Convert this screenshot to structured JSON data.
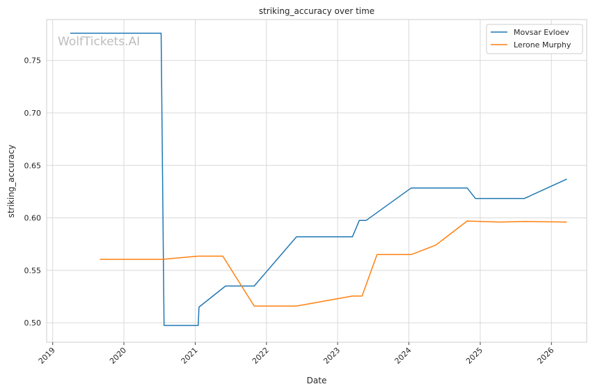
{
  "watermark": "WolfTickets.AI",
  "chart_data": {
    "type": "line",
    "title": "striking_accuracy over time",
    "xlabel": "Date",
    "ylabel": "striking_accuracy",
    "x_ticks": [
      "2019",
      "2020",
      "2021",
      "2022",
      "2023",
      "2024",
      "2025",
      "2026"
    ],
    "y_ticks": [
      "0.50",
      "0.55",
      "0.60",
      "0.65",
      "0.70",
      "0.75"
    ],
    "xlim": [
      "2018-12-01",
      "2026-07-01"
    ],
    "ylim": [
      0.4815,
      0.789
    ],
    "grid": true,
    "legend_position": "top-right",
    "colors": {
      "Movsar Evloev": "#1f77b4",
      "Lerone Murphy": "#ff7f0e"
    },
    "series": [
      {
        "name": "Movsar Evloev",
        "x": [
          "2019-04-01",
          "2020-07-10",
          "2020-07-25",
          "2021-01-16",
          "2021-01-20",
          "2021-06-05",
          "2021-10-30",
          "2022-06-04",
          "2023-03-18",
          "2023-04-22",
          "2023-05-27",
          "2024-01-13",
          "2024-10-26",
          "2024-12-07",
          "2025-08-16",
          "2026-03-21"
        ],
        "y": [
          0.776,
          0.776,
          0.4975,
          0.4975,
          0.515,
          0.535,
          0.535,
          0.582,
          0.582,
          0.5975,
          0.5975,
          0.6285,
          0.6285,
          0.6185,
          0.6185,
          0.637
        ]
      },
      {
        "name": "Lerone Murphy",
        "x": [
          "2019-08-31",
          "2020-07-18",
          "2021-01-16",
          "2021-05-22",
          "2021-10-30",
          "2022-06-04",
          "2023-03-18",
          "2023-05-06",
          "2023-07-22",
          "2024-01-13",
          "2024-05-18",
          "2024-10-26",
          "2025-04-12",
          "2025-08-16",
          "2026-03-21"
        ],
        "y": [
          0.5605,
          0.5605,
          0.5635,
          0.5635,
          0.516,
          0.516,
          0.5255,
          0.5255,
          0.565,
          0.565,
          0.574,
          0.597,
          0.596,
          0.5965,
          0.596
        ]
      }
    ]
  }
}
